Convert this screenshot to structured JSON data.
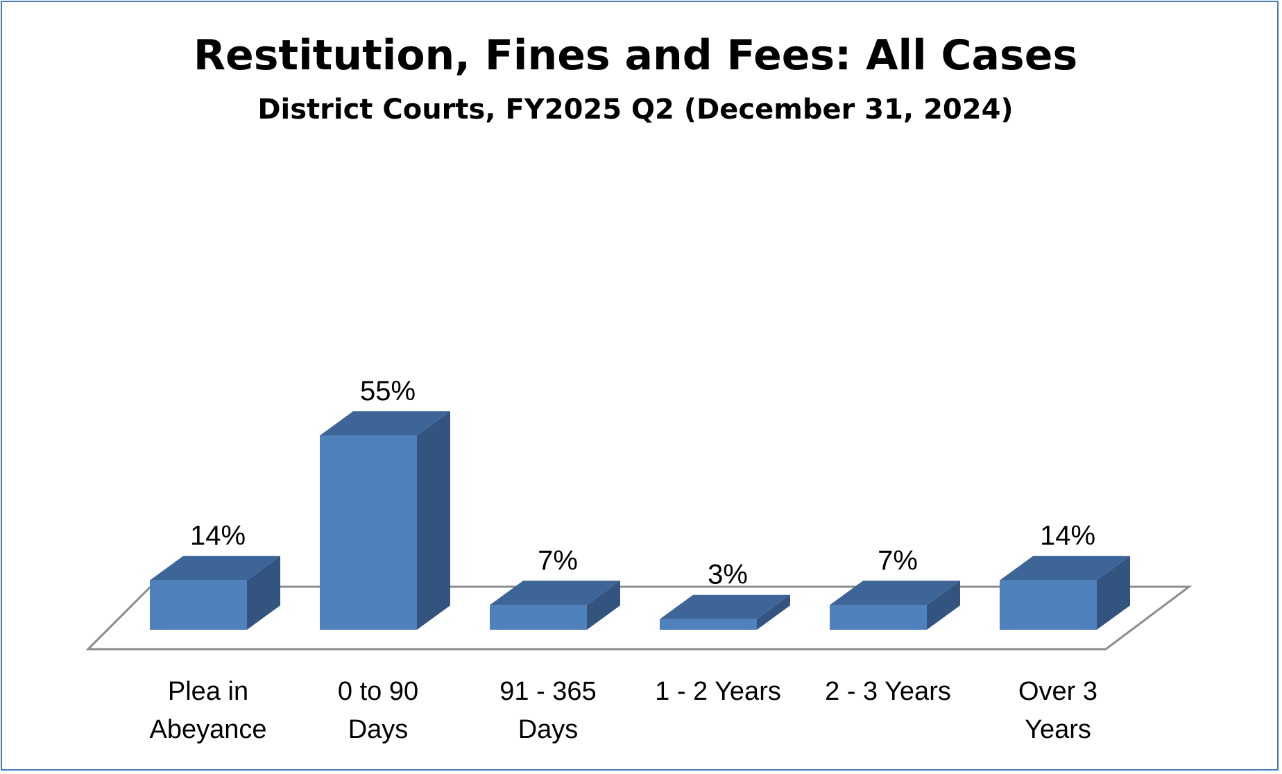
{
  "chart_data": {
    "type": "bar",
    "title": "Restitution, Fines and Fees: All Cases",
    "subtitle": "District Courts, FY2025 Q2 (December 31, 2024)",
    "categories": [
      [
        "Plea in",
        "Abeyance"
      ],
      [
        "0 to 90",
        "Days"
      ],
      [
        "91 - 365",
        "Days"
      ],
      [
        "1 - 2 Years"
      ],
      [
        "2 - 3 Years"
      ],
      [
        "Over 3",
        "Years"
      ]
    ],
    "values": [
      14,
      55,
      7,
      3,
      7,
      14
    ],
    "data_labels": [
      "14%",
      "55%",
      "7%",
      "3%",
      "7%",
      "14%"
    ],
    "value_unit": "%",
    "style": "3d-bar",
    "grid": false,
    "legend": "none",
    "colors": {
      "front": "#4f81bd",
      "top": "#3e6598",
      "side": "#33547f",
      "floor": "#8c8c8c",
      "border": "#4a7ab5"
    }
  }
}
